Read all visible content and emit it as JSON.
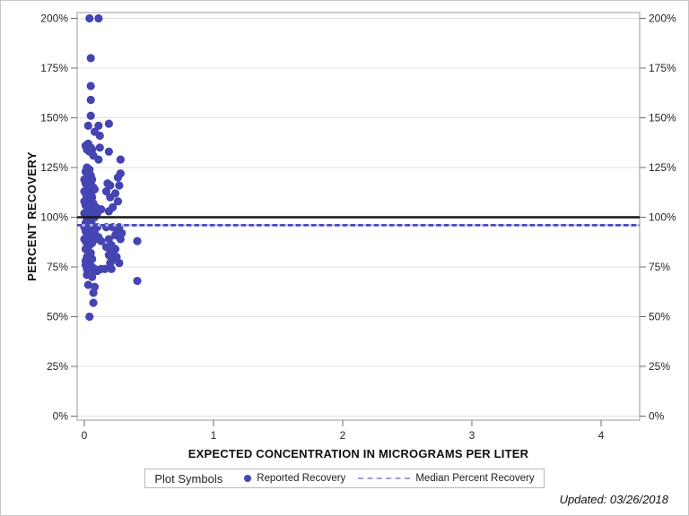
{
  "figure": {
    "updated_text": "Updated: 03/26/2018"
  },
  "chart_data": {
    "type": "scatter",
    "title": "",
    "xlabel": "EXPECTED CONCENTRATION IN MICROGRAMS PER LITER",
    "ylabel": "PERCENT RECOVERY",
    "xlim": [
      -0.06,
      4.3
    ],
    "ylim": [
      -2,
      203
    ],
    "x_ticks": [
      0,
      1,
      2,
      3,
      4
    ],
    "y_ticks": [
      0,
      25,
      50,
      75,
      100,
      125,
      150,
      175,
      200
    ],
    "y_tick_suffix": "%",
    "grid": "horizontal",
    "colors": {
      "marker": "#4444b2",
      "reference_black": "#161616",
      "median_blue": "#3c3cc0",
      "median_underlay": "#c9c9e6",
      "gridline": "#e0e0e0",
      "plot_border": "#9a9a9a",
      "tick": "#6f6f6f",
      "tick_label": "#262626"
    },
    "reference_lines": [
      {
        "name": "reference-100",
        "value": 100,
        "style": "solid"
      },
      {
        "name": "median-percent-recovery",
        "value": 96,
        "style": "dashed"
      }
    ],
    "legend": {
      "title": "Plot Symbols",
      "entries": [
        {
          "label": "Reported Recovery",
          "marker": "dot"
        },
        {
          "label": "Median Percent Recovery",
          "marker": "dashed-line"
        }
      ],
      "position": "bottom"
    },
    "series": [
      {
        "name": "Reported Recovery",
        "marker": "circle",
        "points": [
          [
            0.04,
            200
          ],
          [
            0.11,
            200
          ],
          [
            0.05,
            180
          ],
          [
            0.05,
            166
          ],
          [
            0.05,
            159
          ],
          [
            0.05,
            151
          ],
          [
            0.03,
            146
          ],
          [
            0.11,
            146
          ],
          [
            0.19,
            147
          ],
          [
            0.08,
            143
          ],
          [
            0.12,
            141
          ],
          [
            0.01,
            136
          ],
          [
            0.03,
            137
          ],
          [
            0.05,
            135
          ],
          [
            0.02,
            134
          ],
          [
            0.06,
            134
          ],
          [
            0.04,
            133
          ],
          [
            0.12,
            135
          ],
          [
            0.19,
            133
          ],
          [
            0.28,
            129
          ],
          [
            0.11,
            129
          ],
          [
            0.07,
            131
          ],
          [
            0.02,
            125
          ],
          [
            0.04,
            124
          ],
          [
            0.01,
            123
          ],
          [
            0.03,
            122
          ],
          [
            0.05,
            121
          ],
          [
            0.28,
            122
          ],
          [
            0.26,
            120
          ],
          [
            0.02,
            120
          ],
          [
            0.0,
            119
          ],
          [
            0.04,
            118
          ],
          [
            0.06,
            119
          ],
          [
            0.01,
            117
          ],
          [
            0.18,
            117
          ],
          [
            0.2,
            116
          ],
          [
            0.27,
            116
          ],
          [
            0.03,
            116
          ],
          [
            0.05,
            117
          ],
          [
            0.07,
            115
          ],
          [
            0.02,
            114
          ],
          [
            0.04,
            115
          ],
          [
            0.06,
            113
          ],
          [
            0.0,
            113
          ],
          [
            0.08,
            114
          ],
          [
            0.17,
            113
          ],
          [
            0.01,
            112
          ],
          [
            0.03,
            111
          ],
          [
            0.05,
            112
          ],
          [
            0.24,
            112
          ],
          [
            0.02,
            110
          ],
          [
            0.04,
            109
          ],
          [
            0.06,
            110
          ],
          [
            0.2,
            110
          ],
          [
            0.0,
            108
          ],
          [
            0.02,
            107
          ],
          [
            0.05,
            108
          ],
          [
            0.26,
            108
          ],
          [
            0.07,
            107
          ],
          [
            0.01,
            106
          ],
          [
            0.03,
            105
          ],
          [
            0.22,
            105
          ],
          [
            0.05,
            104
          ],
          [
            0.13,
            104
          ],
          [
            0.02,
            103
          ],
          [
            0.04,
            102
          ],
          [
            0.06,
            103
          ],
          [
            0.19,
            103
          ],
          [
            0.0,
            102
          ],
          [
            0.1,
            102
          ],
          [
            0.01,
            101
          ],
          [
            0.03,
            100
          ],
          [
            0.05,
            101
          ],
          [
            0.07,
            102
          ],
          [
            0.08,
            100
          ],
          [
            0.02,
            99
          ],
          [
            0.04,
            98
          ],
          [
            0.06,
            99
          ],
          [
            0.09,
            105
          ],
          [
            0.01,
            97
          ],
          [
            0.03,
            96
          ],
          [
            0.05,
            97
          ],
          [
            0.17,
            95
          ],
          [
            0.22,
            95
          ],
          [
            0.27,
            95
          ],
          [
            0.0,
            95
          ],
          [
            0.02,
            94
          ],
          [
            0.04,
            95
          ],
          [
            0.06,
            96
          ],
          [
            0.1,
            95
          ],
          [
            0.01,
            93
          ],
          [
            0.03,
            92
          ],
          [
            0.05,
            93
          ],
          [
            0.26,
            93
          ],
          [
            0.07,
            94
          ],
          [
            0.24,
            91
          ],
          [
            0.29,
            92
          ],
          [
            0.02,
            91
          ],
          [
            0.04,
            90
          ],
          [
            0.11,
            90
          ],
          [
            0.0,
            89
          ],
          [
            0.06,
            91
          ],
          [
            0.19,
            89
          ],
          [
            0.28,
            89
          ],
          [
            0.01,
            88
          ],
          [
            0.03,
            89
          ],
          [
            0.05,
            88
          ],
          [
            0.08,
            92
          ],
          [
            0.09,
            89
          ],
          [
            0.13,
            88
          ],
          [
            0.41,
            88
          ],
          [
            0.02,
            87
          ],
          [
            0.04,
            86
          ],
          [
            0.06,
            87
          ],
          [
            0.21,
            86
          ],
          [
            0.17,
            85
          ],
          [
            0.24,
            84
          ],
          [
            0.22,
            83
          ],
          [
            0.01,
            84
          ],
          [
            0.03,
            83
          ],
          [
            0.2,
            82
          ],
          [
            0.05,
            82
          ],
          [
            0.19,
            81
          ],
          [
            0.25,
            80
          ],
          [
            0.02,
            80
          ],
          [
            0.04,
            81
          ],
          [
            0.21,
            78
          ],
          [
            0.27,
            77
          ],
          [
            0.06,
            79
          ],
          [
            0.01,
            78
          ],
          [
            0.2,
            77
          ],
          [
            0.03,
            77
          ],
          [
            0.01,
            76
          ],
          [
            0.03,
            75
          ],
          [
            0.05,
            74
          ],
          [
            0.02,
            74
          ],
          [
            0.06,
            75
          ],
          [
            0.08,
            74
          ],
          [
            0.1,
            73
          ],
          [
            0.13,
            74
          ],
          [
            0.16,
            74
          ],
          [
            0.21,
            74
          ],
          [
            0.04,
            72
          ],
          [
            0.02,
            71
          ],
          [
            0.06,
            70
          ],
          [
            0.03,
            66
          ],
          [
            0.08,
            65
          ],
          [
            0.07,
            62
          ],
          [
            0.07,
            57
          ],
          [
            0.04,
            50
          ],
          [
            0.41,
            68
          ]
        ]
      }
    ]
  }
}
